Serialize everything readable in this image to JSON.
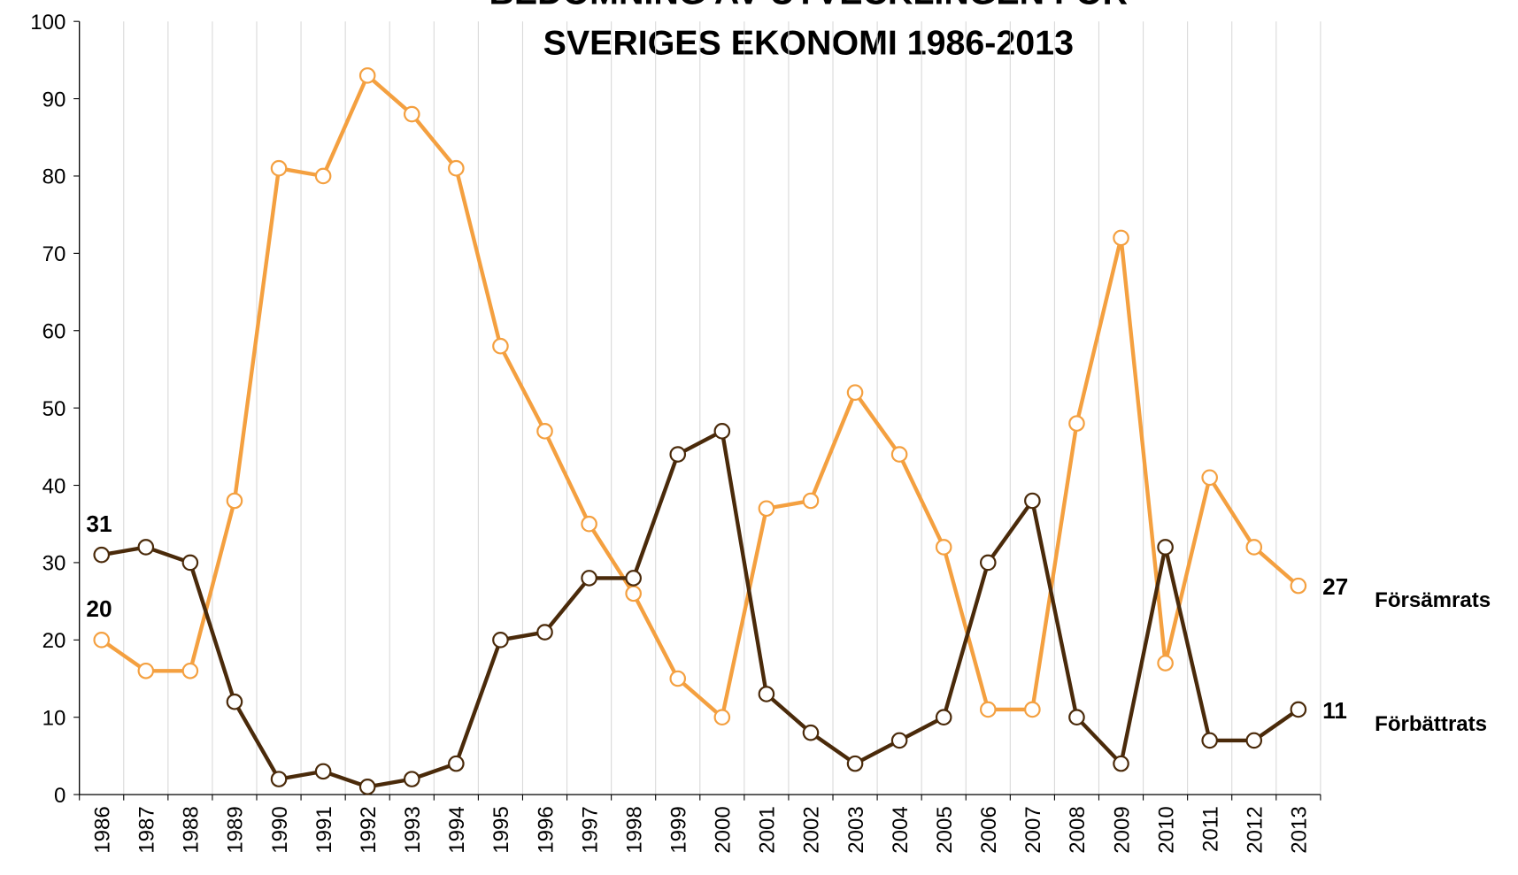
{
  "chart_data": {
    "type": "line",
    "title": [
      "BEDÖMNING AV UTVECKLINGEN FÖR",
      "SVERIGES EKONOMI 1986-2013"
    ],
    "categories": [
      "1986",
      "1987",
      "1988",
      "1989",
      "1990",
      "1991",
      "1992",
      "1993",
      "1994",
      "1995",
      "1996",
      "1997",
      "1998",
      "1999",
      "2000",
      "2001",
      "2002",
      "2003",
      "2004",
      "2005",
      "2006",
      "2007",
      "2008",
      "2009",
      "2010",
      "2011",
      "2012",
      "2013"
    ],
    "series": [
      {
        "name": "Försämrats",
        "color": "#f4a040",
        "values": [
          20,
          16,
          16,
          38,
          81,
          80,
          93,
          88,
          81,
          58,
          47,
          35,
          26,
          15,
          10,
          37,
          38,
          52,
          44,
          32,
          11,
          11,
          48,
          72,
          17,
          41,
          32,
          27
        ]
      },
      {
        "name": "Förbättrats",
        "color": "#4a2a0a",
        "values": [
          31,
          32,
          30,
          12,
          2,
          3,
          1,
          2,
          4,
          20,
          21,
          28,
          28,
          44,
          47,
          13,
          8,
          4,
          7,
          10,
          30,
          38,
          10,
          4,
          32,
          7,
          7,
          11
        ]
      }
    ],
    "ylim": [
      0,
      100
    ],
    "yticks": [
      0,
      10,
      20,
      30,
      40,
      50,
      60,
      70,
      80,
      90,
      100
    ],
    "grid": "vertical"
  }
}
